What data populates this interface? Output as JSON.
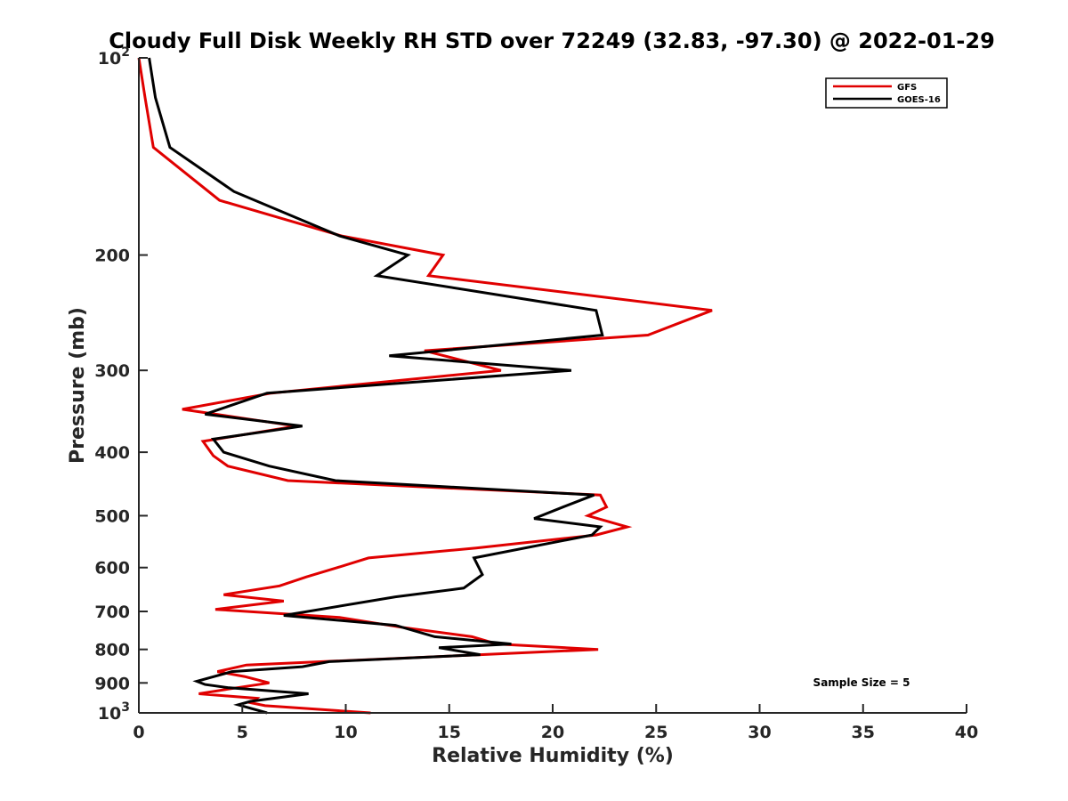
{
  "chart_data": {
    "type": "line",
    "title": "Cloudy Full Disk Weekly RH STD over 72249 (32.83, -97.30) @ 2022-01-29",
    "xlabel": "Relative Humidity (%)",
    "ylabel": "Pressure (mb)",
    "xlim": [
      0,
      40
    ],
    "ylim": [
      100,
      1000
    ],
    "y_scale": "log",
    "y_reversed": true,
    "x_ticks": [
      0,
      5,
      10,
      15,
      20,
      25,
      30,
      35,
      40
    ],
    "x_tick_labels": [
      "0",
      "5",
      "10",
      "15",
      "20",
      "25",
      "30",
      "35",
      "40"
    ],
    "y_ticks": [
      100,
      200,
      300,
      400,
      500,
      600,
      700,
      800,
      900,
      1000
    ],
    "y_tick_labels": [
      {
        "base": "10",
        "sup": "2"
      },
      {
        "base": "200",
        "sup": ""
      },
      {
        "base": "300",
        "sup": ""
      },
      {
        "base": "400",
        "sup": ""
      },
      {
        "base": "500",
        "sup": ""
      },
      {
        "base": "600",
        "sup": ""
      },
      {
        "base": "700",
        "sup": ""
      },
      {
        "base": "800",
        "sup": ""
      },
      {
        "base": "900",
        "sup": ""
      },
      {
        "base": "10",
        "sup": "3"
      }
    ],
    "grid": false,
    "legend_position": "top-right",
    "annotation": "Sample Size = 5",
    "series": [
      {
        "name": "GFS",
        "color": "#e00000",
        "points": [
          [
            0.0,
            100
          ],
          [
            0.3,
            115
          ],
          [
            0.7,
            137
          ],
          [
            3.9,
            165
          ],
          [
            9.8,
            187
          ],
          [
            14.7,
            200
          ],
          [
            14.0,
            215
          ],
          [
            27.7,
            243
          ],
          [
            24.6,
            265
          ],
          [
            13.8,
            280
          ],
          [
            17.5,
            300
          ],
          [
            6.4,
            325
          ],
          [
            2.1,
            344
          ],
          [
            7.6,
            365
          ],
          [
            3.1,
            385
          ],
          [
            3.6,
            405
          ],
          [
            4.3,
            420
          ],
          [
            7.2,
            442
          ],
          [
            22.3,
            465
          ],
          [
            22.6,
            485
          ],
          [
            21.7,
            500
          ],
          [
            23.6,
            520
          ],
          [
            22.1,
            535
          ],
          [
            16.3,
            560
          ],
          [
            11.1,
            580
          ],
          [
            9.6,
            600
          ],
          [
            8.1,
            620
          ],
          [
            6.8,
            640
          ],
          [
            4.1,
            660
          ],
          [
            7.0,
            675
          ],
          [
            3.7,
            695
          ],
          [
            9.7,
            715
          ],
          [
            12.7,
            740
          ],
          [
            16.1,
            765
          ],
          [
            17.3,
            785
          ],
          [
            22.2,
            800
          ],
          [
            16.5,
            815
          ],
          [
            5.2,
            845
          ],
          [
            3.8,
            865
          ],
          [
            5.1,
            880
          ],
          [
            6.3,
            900
          ],
          [
            4.3,
            920
          ],
          [
            2.9,
            935
          ],
          [
            5.7,
            950
          ],
          [
            5.4,
            965
          ],
          [
            6.1,
            975
          ],
          [
            11.2,
            1000
          ]
        ]
      },
      {
        "name": "GOES-16",
        "color": "#000000",
        "points": [
          [
            0.5,
            100
          ],
          [
            0.8,
            115
          ],
          [
            1.5,
            137
          ],
          [
            4.6,
            160
          ],
          [
            9.7,
            187
          ],
          [
            13.0,
            200
          ],
          [
            11.5,
            215
          ],
          [
            22.1,
            243
          ],
          [
            22.4,
            265
          ],
          [
            12.1,
            285
          ],
          [
            20.9,
            300
          ],
          [
            6.2,
            325
          ],
          [
            3.2,
            350
          ],
          [
            7.9,
            365
          ],
          [
            3.6,
            382
          ],
          [
            4.1,
            400
          ],
          [
            6.3,
            420
          ],
          [
            9.5,
            442
          ],
          [
            22.0,
            465
          ],
          [
            20.5,
            485
          ],
          [
            19.1,
            505
          ],
          [
            22.3,
            520
          ],
          [
            21.9,
            535
          ],
          [
            16.2,
            580
          ],
          [
            16.6,
            615
          ],
          [
            15.7,
            645
          ],
          [
            12.4,
            665
          ],
          [
            7.0,
            710
          ],
          [
            12.4,
            735
          ],
          [
            14.3,
            765
          ],
          [
            18.0,
            785
          ],
          [
            14.5,
            795
          ],
          [
            16.5,
            815
          ],
          [
            9.2,
            835
          ],
          [
            7.9,
            850
          ],
          [
            4.5,
            865
          ],
          [
            2.8,
            895
          ],
          [
            3.2,
            905
          ],
          [
            4.3,
            915
          ],
          [
            8.2,
            935
          ],
          [
            5.4,
            960
          ],
          [
            4.8,
            972
          ],
          [
            6.2,
            1000
          ]
        ]
      }
    ]
  }
}
